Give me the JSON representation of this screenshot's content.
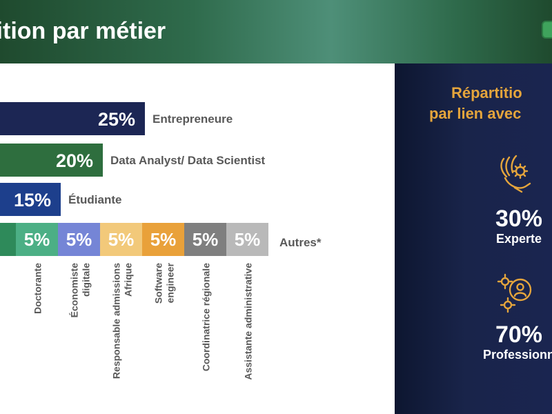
{
  "header": {
    "title": "rtition par métier"
  },
  "sidebar": {
    "title_line1": "Répartitio",
    "title_line2": "par lien avec",
    "stats": [
      {
        "value": "30%",
        "label": "Experte",
        "icon": "hand-gear-icon"
      },
      {
        "value": "70%",
        "label": "Professionne",
        "icon": "person-gear-icon"
      }
    ]
  },
  "chart_data": {
    "type": "bar",
    "title": "",
    "main_bars": [
      {
        "label": "Entrepreneure",
        "value": 25,
        "value_label": "25%",
        "color": "#1c2654"
      },
      {
        "label": "Data Analyst/ Data Scientist",
        "value": 20,
        "value_label": "20%",
        "color": "#2e6e3e"
      },
      {
        "label": "Étudiante",
        "value": 15,
        "value_label": "15%",
        "color": "#1d3f8c"
      }
    ],
    "other_group": {
      "label": "Autres*",
      "segments": [
        {
          "label": "Doctorante",
          "value": 5,
          "value_label": "5%",
          "color": "#4caf85"
        },
        {
          "label": "Économiste digitale",
          "value": 5,
          "value_label": "5%",
          "color": "#7585d6"
        },
        {
          "label": "Responsable admissions Afrique",
          "value": 5,
          "value_label": "5%",
          "color": "#f2c97a"
        },
        {
          "label": "Software engineer",
          "value": 5,
          "value_label": "5%",
          "color": "#e9a13a"
        },
        {
          "label": "Coordinatrice régionale",
          "value": 5,
          "value_label": "5%",
          "color": "#7f7f7f"
        },
        {
          "label": "Assistante administrative",
          "value": 5,
          "value_label": "5%",
          "color": "#b9b9b9"
        }
      ]
    },
    "colors": {
      "label_text": "#595959",
      "value_text": "#ffffff"
    }
  }
}
